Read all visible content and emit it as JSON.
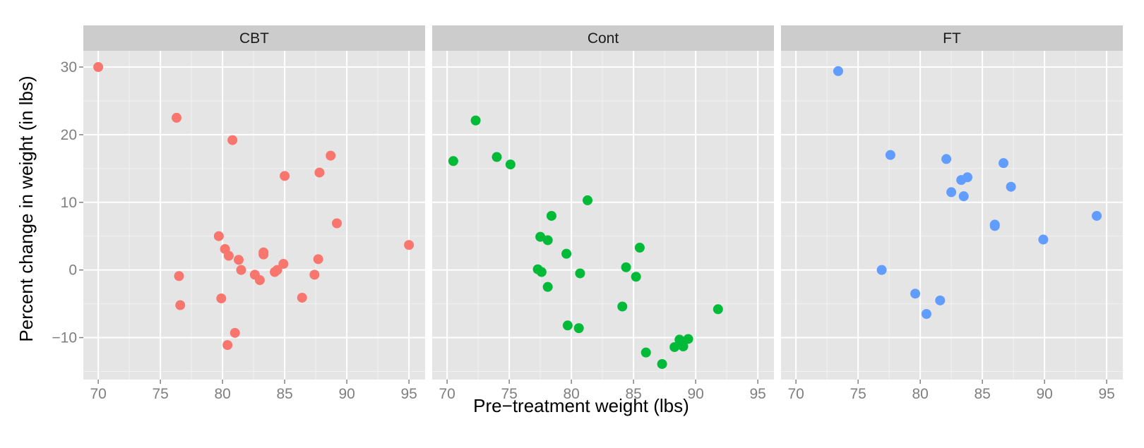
{
  "chart_data": {
    "type": "scatter",
    "xlabel": "Pre−treatment weight (lbs)",
    "ylabel": "Percent change in weight (in lbs)",
    "xlim": [
      68.8,
      96.3
    ],
    "ylim": [
      -16.2,
      32.4
    ],
    "x_ticks": [
      70,
      75,
      80,
      85,
      90,
      95
    ],
    "x_tick_labels": [
      "70",
      "75",
      "80",
      "85",
      "90",
      "95"
    ],
    "y_ticks": [
      -10,
      0,
      10,
      20,
      30
    ],
    "y_tick_labels": [
      "−10",
      "0",
      "10",
      "20",
      "30"
    ],
    "grid": true,
    "legend": "none",
    "panels": [
      {
        "name": "CBT",
        "color": "#F8766D",
        "points": [
          [
            70.0,
            30.0
          ],
          [
            76.3,
            22.5
          ],
          [
            76.5,
            -0.9
          ],
          [
            76.6,
            -5.2
          ],
          [
            79.7,
            5.0
          ],
          [
            79.9,
            -4.2
          ],
          [
            80.2,
            3.1
          ],
          [
            80.4,
            -11.1
          ],
          [
            80.5,
            2.1
          ],
          [
            80.8,
            19.2
          ],
          [
            81.0,
            -9.3
          ],
          [
            81.3,
            1.5
          ],
          [
            81.5,
            0.0
          ],
          [
            82.6,
            -0.7
          ],
          [
            83.0,
            -1.5
          ],
          [
            83.3,
            2.6
          ],
          [
            83.3,
            2.3
          ],
          [
            84.2,
            -0.3
          ],
          [
            84.4,
            0.0
          ],
          [
            84.9,
            0.9
          ],
          [
            85.0,
            13.9
          ],
          [
            86.4,
            -4.1
          ],
          [
            87.4,
            -0.7
          ],
          [
            87.7,
            1.6
          ],
          [
            87.8,
            14.4
          ],
          [
            88.7,
            16.9
          ],
          [
            89.2,
            6.9
          ],
          [
            95.0,
            3.7
          ]
        ]
      },
      {
        "name": "Cont",
        "color": "#00BA38",
        "points": [
          [
            70.5,
            16.1
          ],
          [
            72.3,
            22.1
          ],
          [
            74.0,
            16.7
          ],
          [
            75.1,
            15.6
          ],
          [
            77.3,
            0.1
          ],
          [
            77.5,
            4.9
          ],
          [
            77.6,
            -0.3
          ],
          [
            78.1,
            4.4
          ],
          [
            78.1,
            -2.5
          ],
          [
            78.4,
            8.0
          ],
          [
            79.6,
            2.4
          ],
          [
            79.7,
            -8.2
          ],
          [
            80.6,
            -8.6
          ],
          [
            80.7,
            -0.5
          ],
          [
            81.3,
            10.3
          ],
          [
            84.1,
            -5.4
          ],
          [
            84.4,
            0.4
          ],
          [
            85.2,
            -1.0
          ],
          [
            85.5,
            3.3
          ],
          [
            86.0,
            -12.2
          ],
          [
            87.3,
            -13.9
          ],
          [
            88.3,
            -11.4
          ],
          [
            88.7,
            -10.3
          ],
          [
            89.0,
            -11.3
          ],
          [
            89.4,
            -10.2
          ],
          [
            91.8,
            -5.8
          ]
        ]
      },
      {
        "name": "FT",
        "color": "#619CFF",
        "points": [
          [
            73.4,
            29.4
          ],
          [
            76.9,
            0.0
          ],
          [
            77.6,
            17.0
          ],
          [
            79.6,
            -3.5
          ],
          [
            80.5,
            -6.5
          ],
          [
            81.6,
            -4.5
          ],
          [
            82.1,
            16.4
          ],
          [
            82.5,
            11.5
          ],
          [
            83.3,
            13.3
          ],
          [
            83.5,
            10.9
          ],
          [
            83.8,
            13.7
          ],
          [
            86.0,
            6.7
          ],
          [
            86.0,
            6.5
          ],
          [
            86.7,
            15.8
          ],
          [
            87.3,
            12.3
          ],
          [
            89.9,
            4.5
          ],
          [
            94.2,
            8.0
          ]
        ]
      }
    ]
  },
  "colors": {
    "panel_background": "#E5E5E5",
    "strip_background": "#CCCCCC",
    "major_grid": "#FFFFFF",
    "minor_grid": "#F2F2F2"
  }
}
